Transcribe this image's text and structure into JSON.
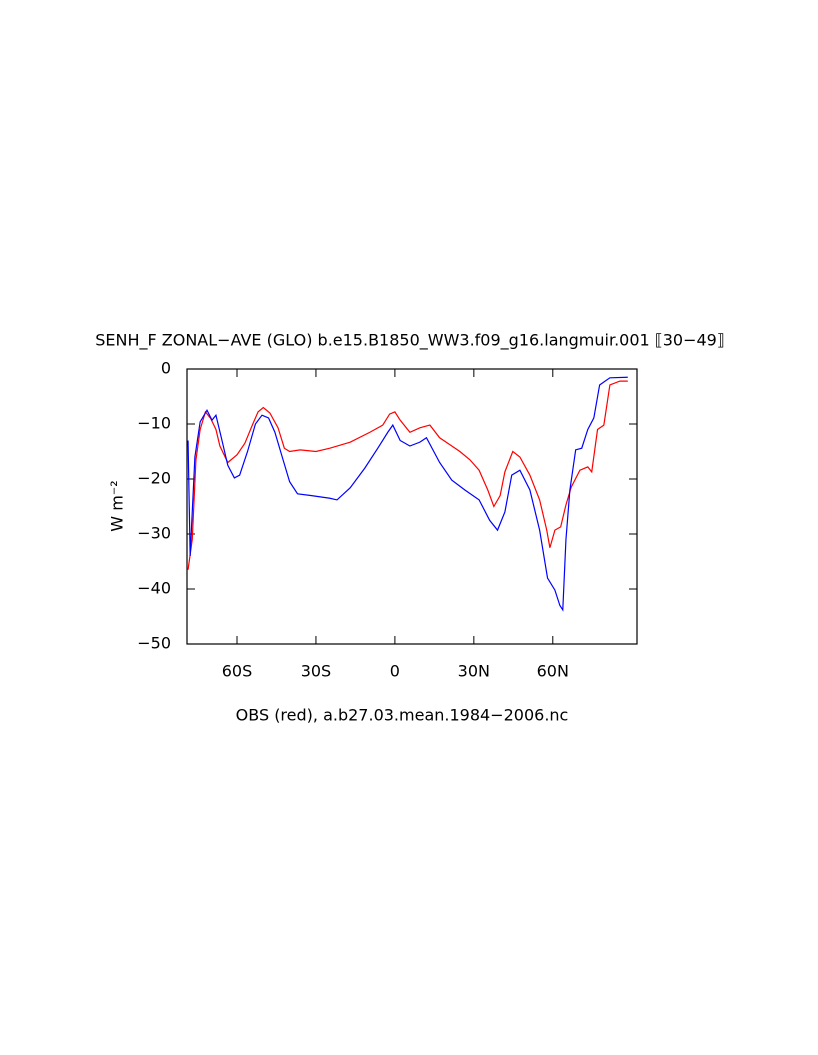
{
  "chart_data": {
    "type": "line",
    "title": "SENH_F ZONAL−AVE (GLO) b.e15.B1850_WW3.f09_g16.langmuir.001 ⟦30−49⟧",
    "y_label": "W m⁻²",
    "x_label": "OBS (red), a.b27.03.mean.1984−2006.nc",
    "xlim": [
      -79,
      92
    ],
    "ylim": [
      -50,
      0
    ],
    "xticks": [
      {
        "value": -60,
        "label": "60S"
      },
      {
        "value": -30,
        "label": "30S"
      },
      {
        "value": 0,
        "label": "0"
      },
      {
        "value": 30,
        "label": "30N"
      },
      {
        "value": 60,
        "label": "60N"
      }
    ],
    "yticks": [
      {
        "value": -50,
        "label": "−50"
      },
      {
        "value": -40,
        "label": "−40"
      },
      {
        "value": -30,
        "label": "−30"
      },
      {
        "value": -20,
        "label": "−20"
      },
      {
        "value": -10,
        "label": "−10"
      },
      0
    ],
    "series": [
      {
        "color": "#ff0000",
        "x": [
          -78.6,
          -77,
          -75.6,
          -74,
          -72,
          -70,
          -68,
          -66.5,
          -63.5,
          -60,
          -57,
          -54,
          -52,
          -50,
          -47.5,
          -44.4,
          -42,
          -40,
          -36,
          -30,
          -24.7,
          -17,
          -9.5,
          -4.6,
          -2,
          0,
          2,
          5.7,
          9.5,
          13.3,
          17,
          21,
          24.7,
          28.5,
          32,
          35.3,
          37.6,
          40,
          41.8,
          44.8,
          47.5,
          51.3,
          55,
          57.7,
          58.9,
          60.8,
          63,
          65,
          67,
          70.3,
          73.3,
          74.8,
          77,
          79.4,
          81.7,
          85.5,
          88.5
        ],
        "values": [
          -36.5,
          -31,
          -16.5,
          -11,
          -7.8,
          -9,
          -11,
          -14,
          -17,
          -15.6,
          -13.5,
          -10,
          -7.8,
          -7,
          -8,
          -10.7,
          -14.4,
          -15,
          -14.7,
          -15,
          -14.4,
          -13.3,
          -11.5,
          -10.2,
          -8.2,
          -7.8,
          -9.3,
          -11.5,
          -10.7,
          -10.2,
          -12.5,
          -13.8,
          -15,
          -16.5,
          -18.4,
          -22,
          -25,
          -23,
          -18.7,
          -15,
          -16,
          -19.3,
          -23.8,
          -29.3,
          -32.5,
          -29.3,
          -28.7,
          -24.7,
          -21.5,
          -18.4,
          -17.8,
          -18.7,
          -11,
          -10.2,
          -2.9,
          -2.2,
          -2.2
        ]
      },
      {
        "color": "#0000ff",
        "x": [
          -78.6,
          -77.8,
          -76,
          -74,
          -71.4,
          -69.5,
          -68,
          -65.7,
          -63.5,
          -61,
          -59,
          -56,
          -53,
          -50.5,
          -48,
          -45.6,
          -42.5,
          -40,
          -37,
          -32,
          -24.7,
          -22,
          -17,
          -11.4,
          -6.5,
          -2.7,
          -0.8,
          2,
          5.7,
          9.5,
          12,
          17,
          21.6,
          26.6,
          32,
          36,
          39,
          41.8,
          44.4,
          47.5,
          51.3,
          55,
          58,
          60.8,
          62.7,
          63.8,
          65,
          66.5,
          68.7,
          71,
          73.3,
          75.6,
          77.8,
          81.7,
          88.5
        ],
        "values": [
          -13,
          -34,
          -16,
          -9.6,
          -7.5,
          -9.3,
          -8.4,
          -13,
          -17.5,
          -19.8,
          -19.3,
          -15,
          -10,
          -8.4,
          -8.9,
          -11.5,
          -16.5,
          -20.5,
          -22.7,
          -23,
          -23.5,
          -23.8,
          -21.6,
          -18,
          -14.4,
          -11.5,
          -10.2,
          -13,
          -14,
          -13.3,
          -12.5,
          -17,
          -20.2,
          -22,
          -23.8,
          -27.5,
          -29.3,
          -26,
          -19.3,
          -18.4,
          -22,
          -29.3,
          -38,
          -40.2,
          -43,
          -43.8,
          -31,
          -22,
          -14.7,
          -14.4,
          -11,
          -8.9,
          -2.9,
          -1.6,
          -1.5
        ]
      }
    ]
  }
}
